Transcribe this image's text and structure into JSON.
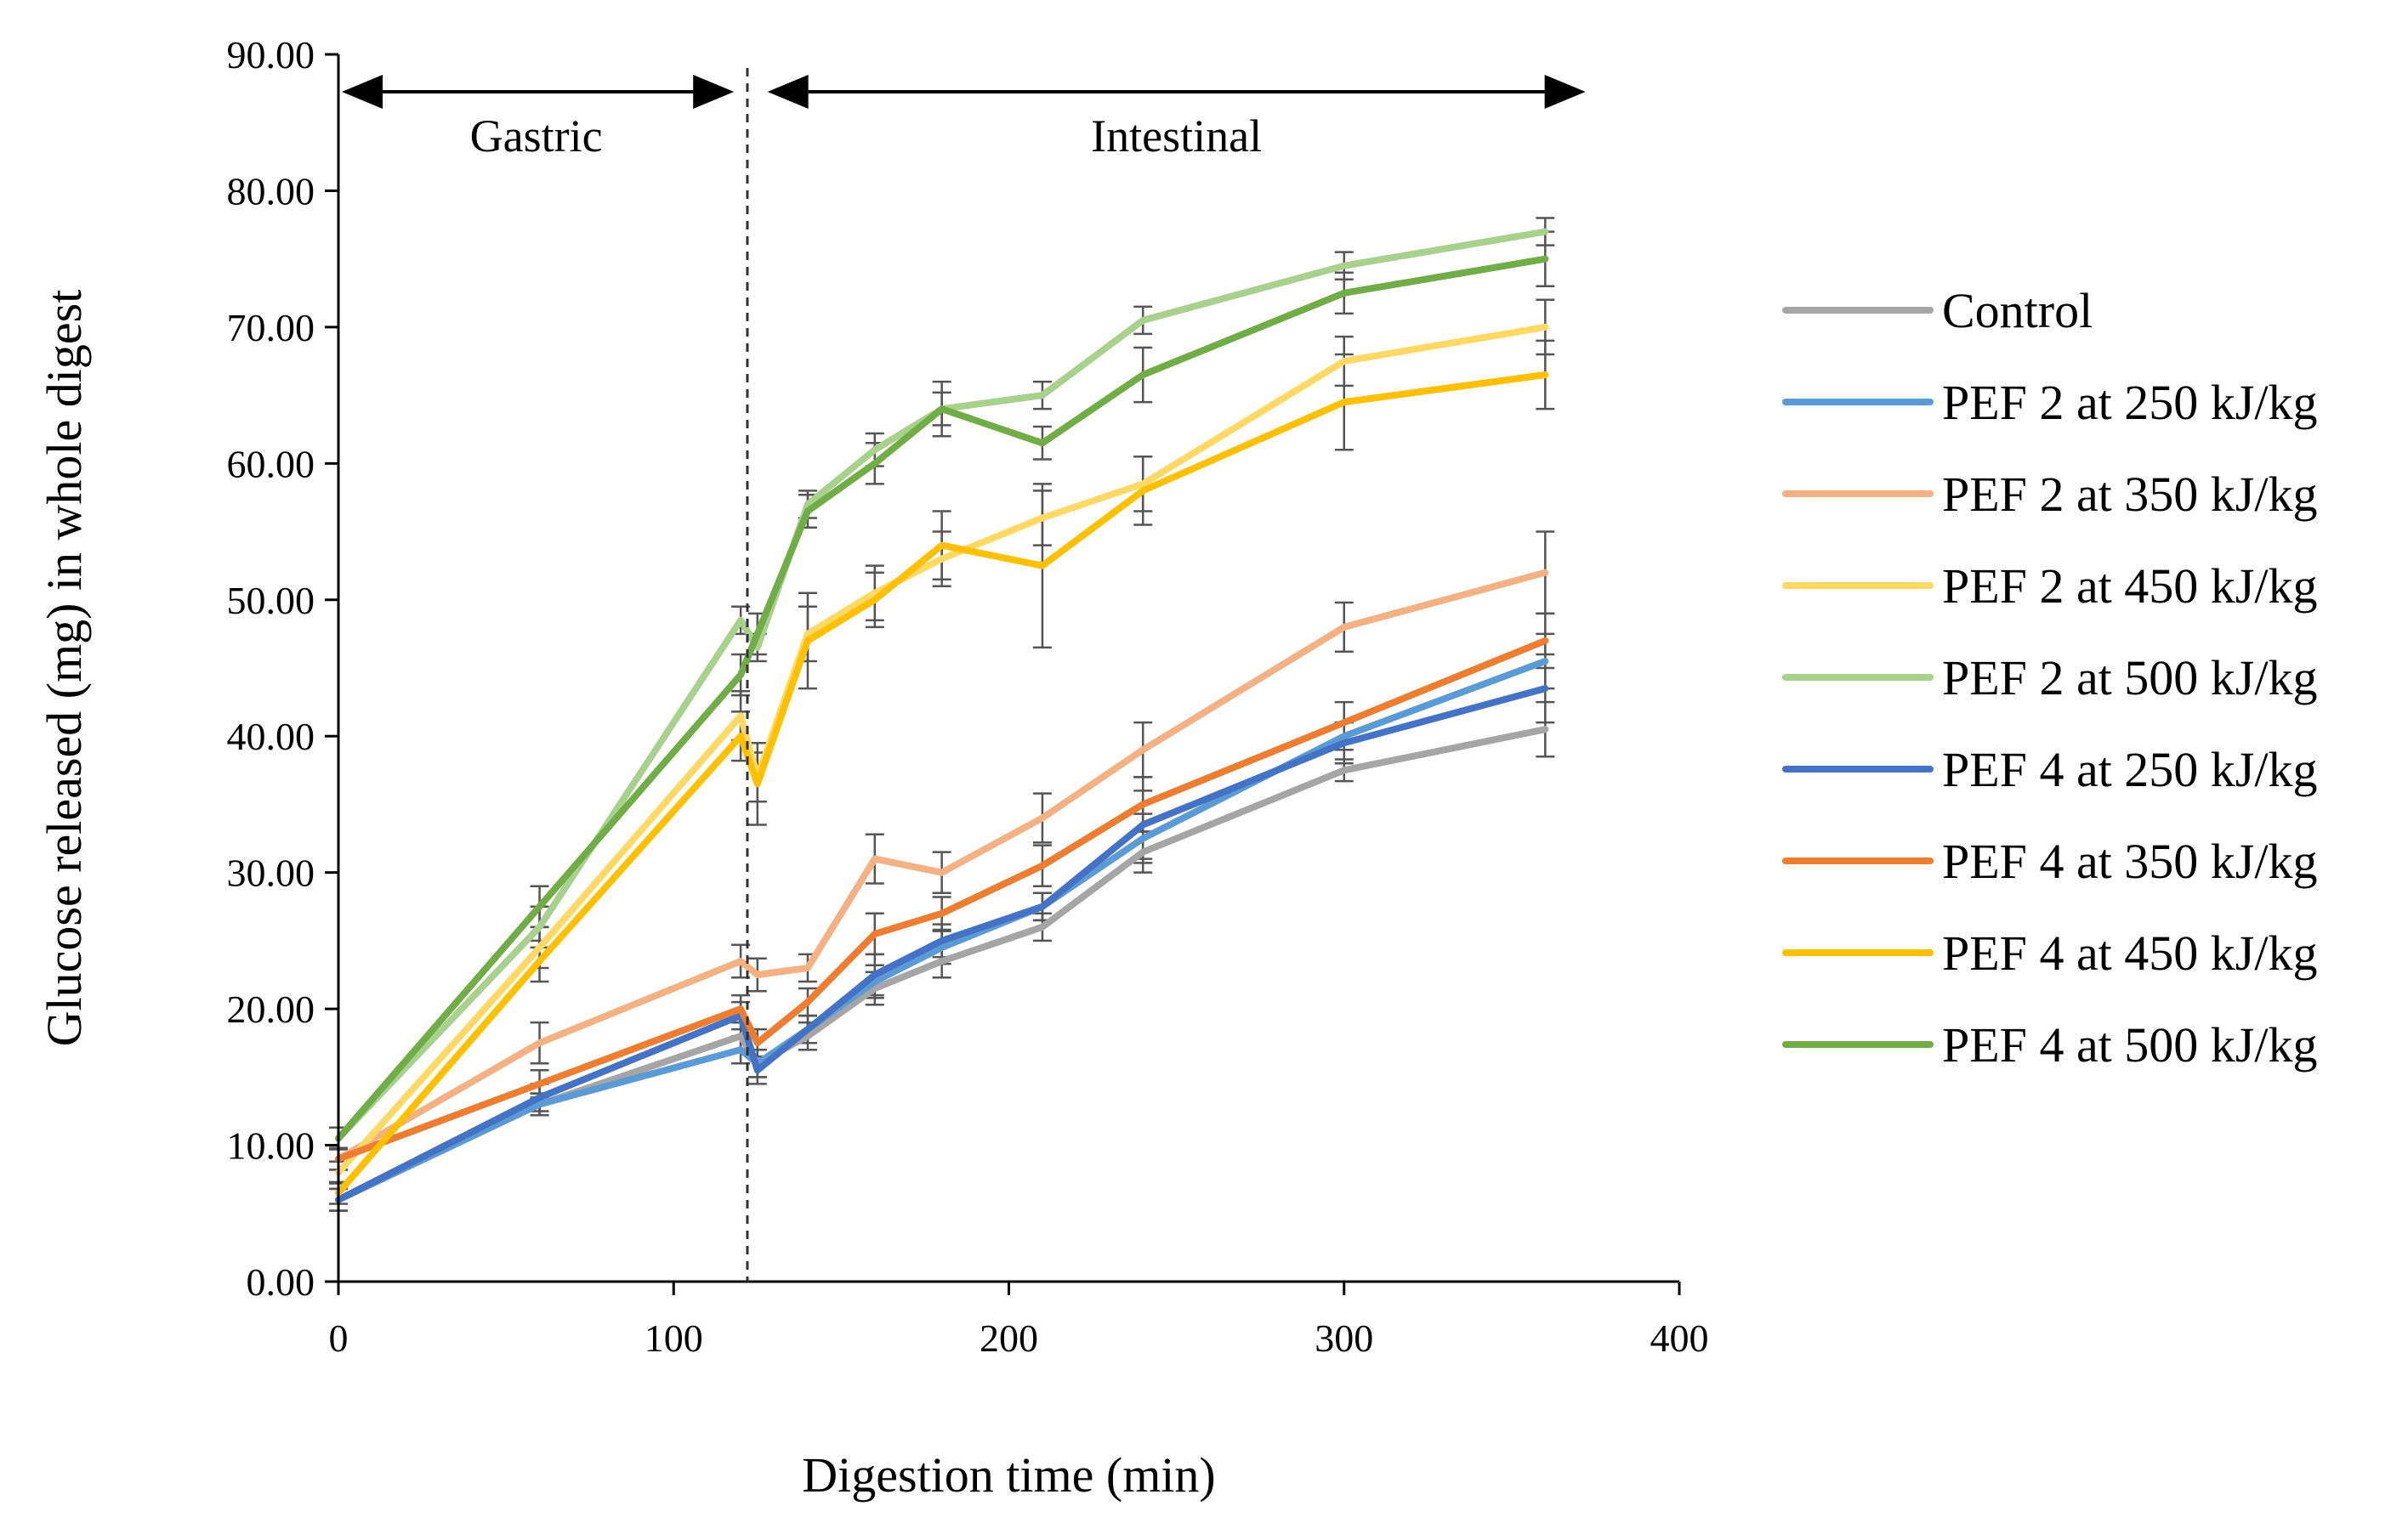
{
  "chart_data": {
    "type": "line",
    "title": "",
    "xlabel": "Digestion time (min)",
    "ylabel": "Glucose released (mg) in whole digest",
    "xlim": [
      0,
      400
    ],
    "ylim": [
      0,
      90
    ],
    "x_ticks": [
      0,
      100,
      200,
      300,
      400
    ],
    "x_tick_labels": [
      "0",
      "100",
      "200",
      "300",
      "400"
    ],
    "y_ticks": [
      0,
      10,
      20,
      30,
      40,
      50,
      60,
      70,
      80,
      90
    ],
    "y_tick_labels": [
      "0.00",
      "10.00",
      "20.00",
      "30.00",
      "40.00",
      "50.00",
      "60.00",
      "70.00",
      "80.00",
      "90.00"
    ],
    "grid": false,
    "legend_position": "right",
    "annotations": {
      "divider_x": 122,
      "gastric": {
        "label": "Gastric",
        "x_start": 0,
        "x_end": 118
      },
      "intestinal": {
        "label": "Intestinal",
        "x_start": 128,
        "x_end": 372
      }
    },
    "x": [
      0,
      60,
      120,
      125,
      140,
      160,
      180,
      210,
      240,
      300,
      360
    ],
    "series": [
      {
        "name": "Control",
        "color": "#A5A5A5",
        "values": [
          6.0,
          13.0,
          18.0,
          16.0,
          18.0,
          21.5,
          23.5,
          26.0,
          31.5,
          37.5,
          40.5
        ],
        "errors": [
          0.8,
          0.8,
          1.0,
          1.0,
          1.0,
          1.2,
          1.2,
          1.0,
          1.5,
          0.8,
          2.0
        ]
      },
      {
        "name": "PEF 2 at 250 kJ/kg",
        "color": "#5B9BD5",
        "values": [
          6.0,
          13.0,
          17.0,
          16.0,
          18.5,
          22.0,
          24.5,
          27.5,
          32.5,
          40.0,
          45.5
        ],
        "errors": [
          0.8,
          0.8,
          1.0,
          1.0,
          1.0,
          1.2,
          1.2,
          1.0,
          1.8,
          1.0,
          2.0
        ]
      },
      {
        "name": "PEF 2 at 350 kJ/kg",
        "color": "#F4B183",
        "values": [
          9.0,
          17.5,
          23.5,
          22.5,
          23.0,
          31.0,
          30.0,
          34.0,
          39.0,
          48.0,
          52.0
        ],
        "errors": [
          0.8,
          1.5,
          1.2,
          1.2,
          1.0,
          1.8,
          1.5,
          1.8,
          2.0,
          1.8,
          3.0
        ]
      },
      {
        "name": "PEF 2 at 450 kJ/kg",
        "color": "#FFD966",
        "values": [
          8.0,
          24.5,
          41.5,
          37.0,
          47.5,
          50.5,
          53.0,
          56.0,
          58.5,
          67.5,
          70.0
        ],
        "errors": [
          0.8,
          1.5,
          1.8,
          1.8,
          2.0,
          2.0,
          2.0,
          2.0,
          2.0,
          1.8,
          2.0
        ]
      },
      {
        "name": "PEF 2 at 500 kJ/kg",
        "color": "#A9D18E",
        "values": [
          10.5,
          26.0,
          48.5,
          46.5,
          57.0,
          61.0,
          64.0,
          65.0,
          70.5,
          74.5,
          77.0
        ],
        "errors": [
          0.8,
          1.5,
          1.0,
          1.0,
          1.0,
          1.2,
          1.2,
          1.0,
          1.0,
          1.0,
          1.0
        ]
      },
      {
        "name": "PEF 4 at 250 kJ/kg",
        "color": "#4472C4",
        "values": [
          6.0,
          13.5,
          19.5,
          15.5,
          18.5,
          22.5,
          25.0,
          27.5,
          33.5,
          39.5,
          43.5
        ],
        "errors": [
          0.8,
          1.0,
          1.0,
          1.0,
          1.0,
          1.5,
          1.2,
          1.0,
          2.5,
          1.5,
          2.5
        ]
      },
      {
        "name": "PEF 4 at 350 kJ/kg",
        "color": "#ED7D31",
        "values": [
          9.0,
          14.5,
          20.0,
          17.5,
          20.5,
          25.5,
          27.0,
          30.5,
          35.0,
          41.0,
          47.0
        ],
        "errors": [
          0.8,
          1.0,
          1.0,
          1.0,
          1.0,
          1.5,
          1.2,
          1.5,
          2.0,
          1.5,
          2.0
        ]
      },
      {
        "name": "PEF 4 at 450 kJ/kg",
        "color": "#FFC000",
        "values": [
          6.5,
          23.5,
          40.0,
          36.5,
          47.0,
          50.0,
          54.0,
          52.5,
          58.0,
          64.5,
          66.5
        ],
        "errors": [
          0.8,
          1.5,
          1.8,
          3.0,
          3.5,
          2.0,
          2.5,
          6.0,
          2.5,
          3.5,
          2.5
        ]
      },
      {
        "name": "PEF 4 at 500 kJ/kg",
        "color": "#70AD47",
        "values": [
          10.5,
          27.5,
          44.5,
          47.5,
          56.5,
          60.0,
          64.0,
          61.5,
          66.5,
          72.5,
          75.0
        ],
        "errors": [
          0.8,
          1.5,
          1.5,
          1.5,
          1.2,
          1.5,
          2.0,
          1.2,
          2.0,
          1.5,
          2.0
        ]
      }
    ]
  }
}
